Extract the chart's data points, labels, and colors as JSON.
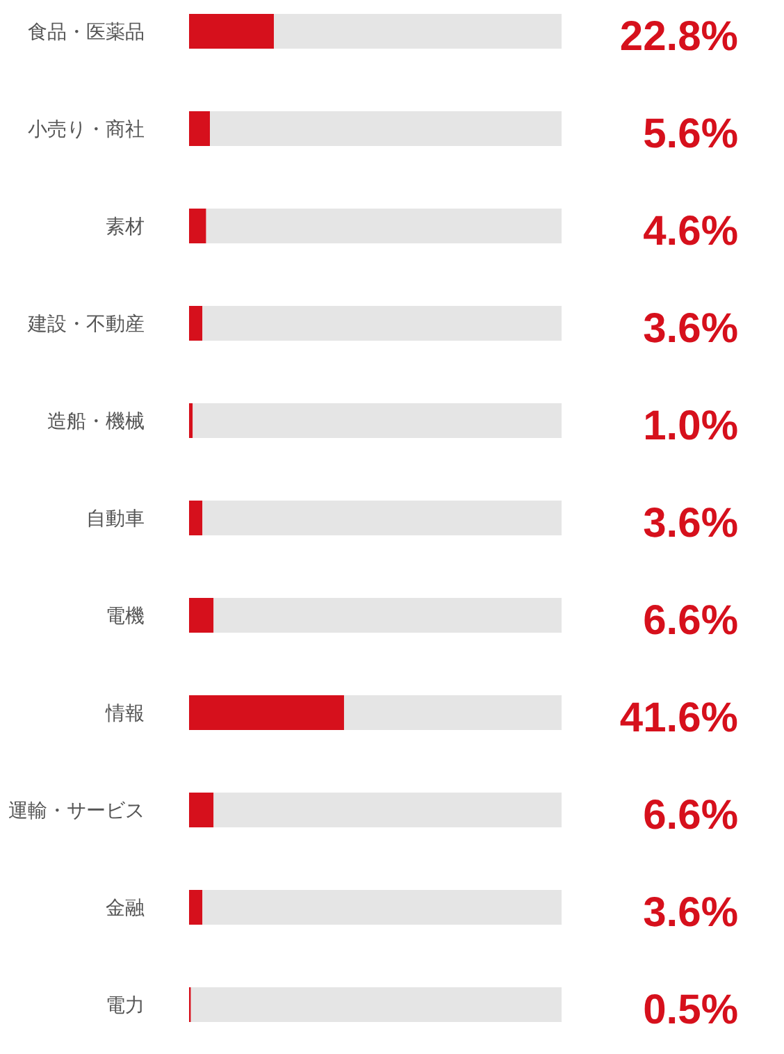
{
  "chart_data": {
    "type": "bar",
    "orientation": "horizontal",
    "stacked": true,
    "categories": [
      "食品・医薬品",
      "小売り・商社",
      "素材",
      "建設・不動産",
      "造船・機械",
      "自動車",
      "電機",
      "情報",
      "運輸・サービス",
      "金融",
      "電力"
    ],
    "series": [
      {
        "color": "#d6101c",
        "values": [
          22.8,
          5.6,
          4.6,
          3.6,
          1.0,
          3.6,
          6.6,
          41.6,
          6.6,
          3.6,
          0.5
        ],
        "value_labels": [
          "22.8%",
          "5.6%",
          "4.6%",
          "3.6%",
          "1.0%",
          "3.6%",
          "6.6%",
          "41.6%",
          "6.6%",
          "3.6%",
          "0.5%"
        ]
      },
      {
        "color": "#e5e5e5",
        "values": [
          77.2,
          94.4,
          95.4,
          96.4,
          99.0,
          96.4,
          93.4,
          58.4,
          93.4,
          96.4,
          99.5
        ]
      }
    ],
    "xlim": [
      0,
      100
    ],
    "tick_labels": "y"
  }
}
